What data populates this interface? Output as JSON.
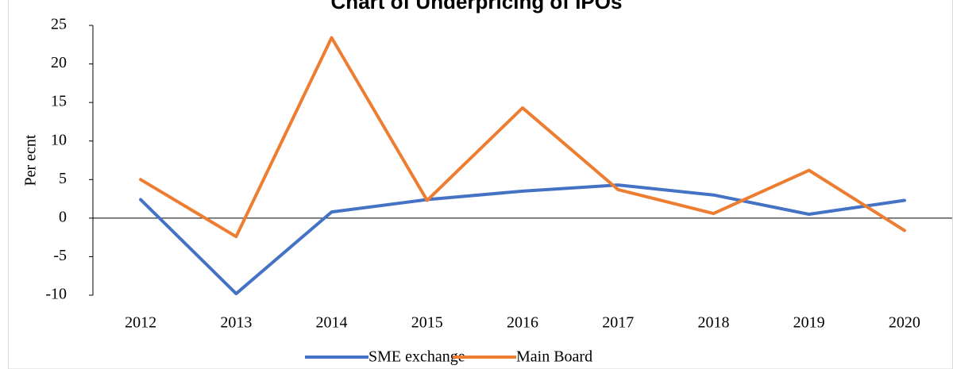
{
  "chart_data": {
    "type": "line",
    "title": "Chart of Underpricing of IPOs",
    "y_label": "Per ecnt",
    "categories": [
      "2012",
      "2013",
      "2014",
      "2015",
      "2016",
      "2017",
      "2018",
      "2019",
      "2020"
    ],
    "series": [
      {
        "name": "SME exchange",
        "color": "#4472c4",
        "values": [
          2.4,
          -9.8,
          0.8,
          2.4,
          3.5,
          4.3,
          3.0,
          0.5,
          2.3
        ]
      },
      {
        "name": "Main Board",
        "color": "#ed7d31",
        "values": [
          5.0,
          -2.4,
          23.4,
          2.3,
          14.3,
          3.7,
          0.6,
          6.2,
          -1.6
        ]
      }
    ],
    "ylim": [
      -10,
      25
    ],
    "yticks": [
      -10,
      -5,
      0,
      5,
      10,
      15,
      20,
      25
    ],
    "legend": "bottom"
  }
}
